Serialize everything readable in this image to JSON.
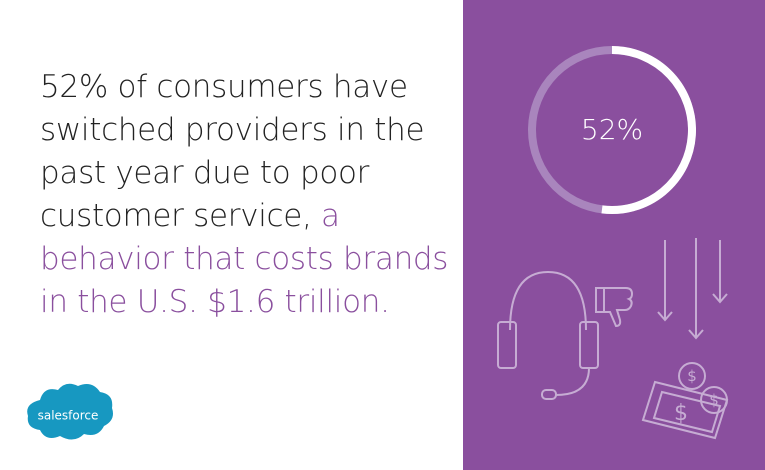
{
  "headline": {
    "lines": [
      {
        "text": "52% of consumers have"
      },
      {
        "text": "switched providers in the"
      },
      {
        "text": "past year due to poor"
      },
      {
        "text": "customer service,",
        "highlight": "a"
      },
      {
        "highlight": "behavior that costs brands"
      },
      {
        "highlight": "in the U.S. $1.6 trillion."
      }
    ]
  },
  "donut": {
    "value": 52,
    "label": "52%"
  },
  "logo": "salesforce"
}
